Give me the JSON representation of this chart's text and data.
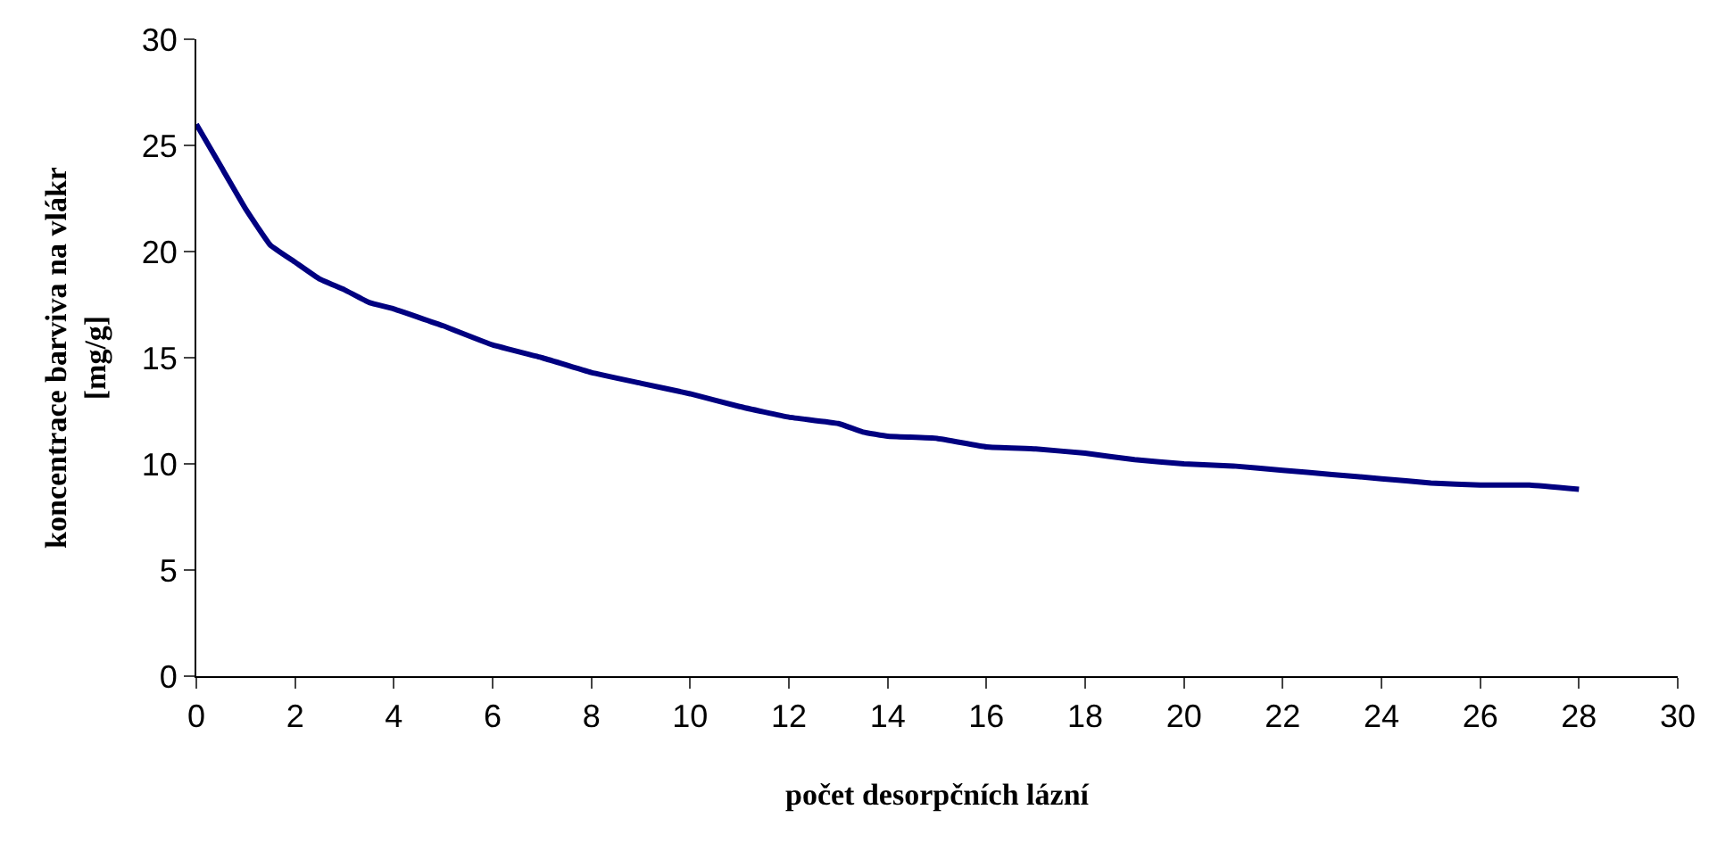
{
  "chart_data": {
    "type": "line",
    "xlabel": "počet desorpčních lázní",
    "ylabel": "koncentrace barviva na vlákr\n[mg/g]",
    "x": [
      0,
      0.5,
      1,
      1.5,
      2,
      2.5,
      3,
      3.5,
      4,
      5,
      6,
      7,
      8,
      9,
      10,
      11,
      12,
      13,
      13.5,
      14,
      15,
      16,
      17,
      18,
      19,
      20,
      21,
      22,
      23,
      24,
      25,
      26,
      27,
      28
    ],
    "series": [
      {
        "color": "#000080",
        "values": [
          26,
          24,
          22,
          20.3,
          19.5,
          18.7,
          18.2,
          17.6,
          17.3,
          16.5,
          15.6,
          15,
          14.3,
          13.8,
          13.3,
          12.7,
          12.2,
          11.9,
          11.5,
          11.3,
          11.2,
          10.8,
          10.7,
          10.5,
          10.2,
          10,
          9.9,
          9.7,
          9.5,
          9.3,
          9.1,
          9,
          9,
          8.8
        ]
      }
    ],
    "xlim": [
      0,
      30
    ],
    "xticks": [
      0,
      2,
      4,
      6,
      8,
      10,
      12,
      14,
      16,
      18,
      20,
      22,
      24,
      26,
      28,
      30
    ],
    "ylim": [
      0,
      30
    ],
    "yticks": [
      0,
      5,
      10,
      15,
      20,
      25,
      30
    ],
    "marker": "none",
    "line_style": "solid"
  }
}
